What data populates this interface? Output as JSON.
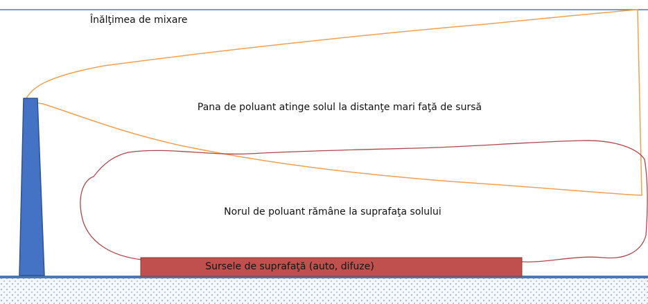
{
  "labels": {
    "mixing_height": "Înălţimea de mixare",
    "plume": "Pana de poluant atinge solul la distanţe mari faţă de sursă",
    "cloud": "Norul de poluant rămâne la suprafaţa solului",
    "surface_sources": "Sursele de suprafaţă (auto, difuze)"
  }
}
